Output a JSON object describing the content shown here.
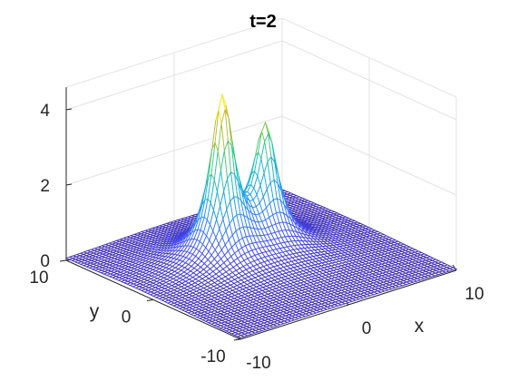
{
  "chart_data": {
    "type": "surface",
    "title": "t=2",
    "xlabel": "x",
    "ylabel": "y",
    "zlabel": "",
    "xlim": [
      -10,
      10
    ],
    "ylim": [
      -10,
      10
    ],
    "zlim": [
      0,
      4.6
    ],
    "xticks": [
      -10,
      0,
      10
    ],
    "yticks": [
      -10,
      0,
      10
    ],
    "zticks": [
      0,
      2,
      4
    ],
    "xtick_labels": [
      "-10",
      "0",
      "10"
    ],
    "ytick_labels": [
      "-10",
      "0",
      "10"
    ],
    "ztick_labels": [
      "0",
      "2",
      "4"
    ],
    "grid": true,
    "colormap": "parula",
    "colormap_stops": [
      "#3e26a8",
      "#4850f4",
      "#2f80fb",
      "#16a9e1",
      "#1bc3b8",
      "#6fcd59",
      "#d0ba2f",
      "#f9fb15"
    ],
    "peaks": [
      {
        "x": -2.0,
        "y": 2.0,
        "height": 4.3
      },
      {
        "x": 2.0,
        "y": 2.0,
        "height": 3.1
      }
    ],
    "mesh_points": 61
  }
}
